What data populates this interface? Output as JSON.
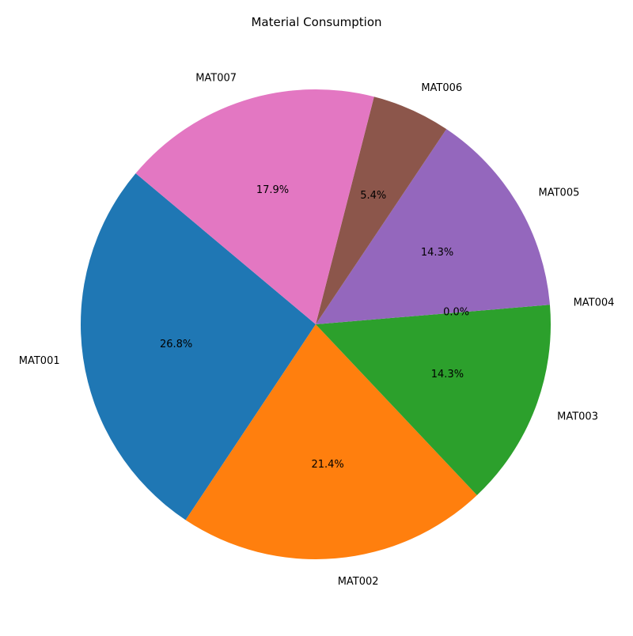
{
  "chart_data": {
    "type": "pie",
    "title": "Material Consumption",
    "labels": [
      "MAT001",
      "MAT002",
      "MAT003",
      "MAT004",
      "MAT005",
      "MAT006",
      "MAT007"
    ],
    "values": [
      26.8,
      21.4,
      14.3,
      0.0,
      14.3,
      5.4,
      17.9
    ],
    "value_labels": [
      "26.8%",
      "21.4%",
      "14.3%",
      "0.0%",
      "14.3%",
      "5.4%",
      "17.9%"
    ],
    "colors": [
      "#1f77b4",
      "#ff7f0e",
      "#2ca02c",
      "#d62728",
      "#9467bd",
      "#8c564b",
      "#e377c2"
    ],
    "start_angle_degrees": 140,
    "direction": "counterclockwise",
    "legend": "none"
  }
}
